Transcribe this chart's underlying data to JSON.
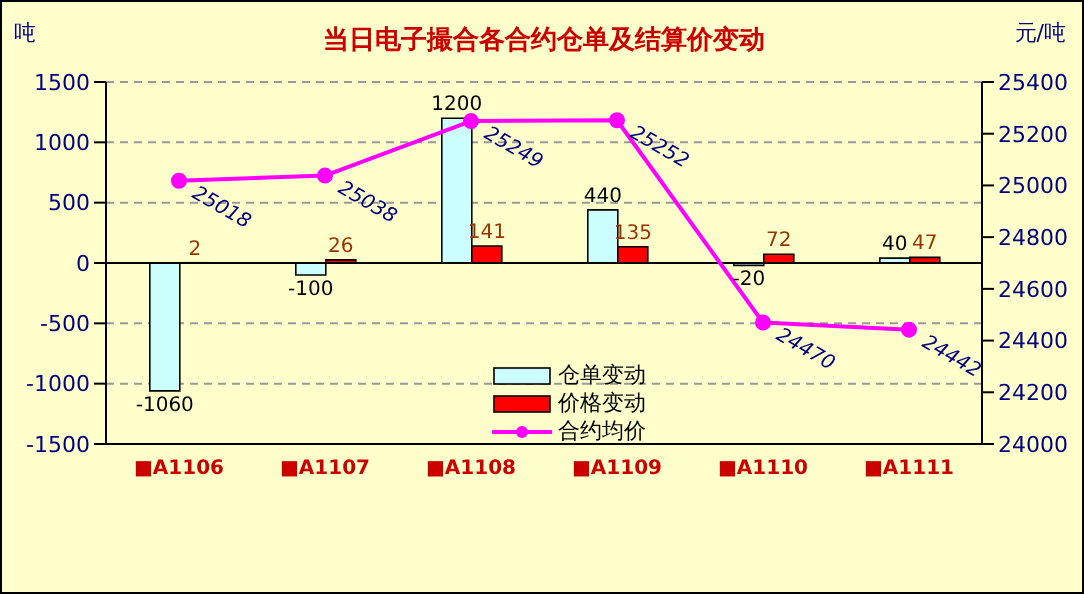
{
  "chart_data": {
    "type": "bar",
    "title": "当日电子撮合各合约仓单及结算价变动",
    "ylabel": "吨",
    "y2label": "元/吨",
    "categories": [
      "■A1106",
      "■A1107",
      "■A1108",
      "■A1109",
      "■A1110",
      "■A1111"
    ],
    "series": [
      {
        "name": "仓单变动",
        "color": "#ccffff",
        "values": [
          -1060,
          -100,
          1200,
          440,
          -20,
          40
        ]
      },
      {
        "name": "价格变动",
        "color": "#ff0000",
        "values": [
          2,
          26,
          141,
          135,
          72,
          47
        ]
      },
      {
        "name": "合约均价",
        "type": "line",
        "axis": "y2",
        "color": "#ff00ff",
        "values": [
          25018,
          25038,
          25249,
          25252,
          24470,
          24442
        ]
      }
    ],
    "ylim": [
      -1500,
      1500
    ],
    "yticks": [
      -1500,
      -1000,
      -500,
      0,
      500,
      1000,
      1500
    ],
    "y2lim": [
      24000,
      25400
    ],
    "y2ticks": [
      24000,
      24200,
      24400,
      24600,
      24800,
      25000,
      25200,
      25400
    ],
    "grid": "y",
    "legend": "bottom",
    "marker": "circle",
    "data_labels": true
  }
}
